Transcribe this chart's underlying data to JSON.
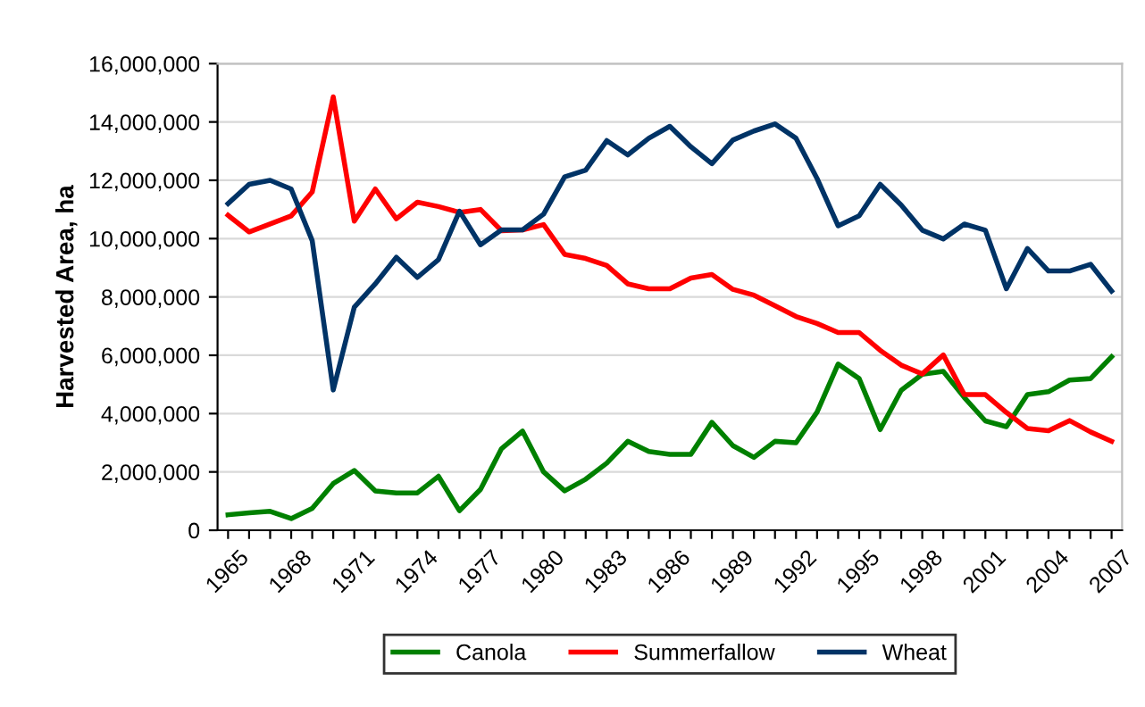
{
  "chart_data": {
    "type": "line",
    "ylabel": "Harvested Area, ha",
    "categories": [
      "1965",
      null,
      null,
      "1968",
      null,
      null,
      "1971",
      null,
      null,
      "1974",
      null,
      null,
      "1977",
      null,
      null,
      "1980",
      null,
      null,
      "1983",
      null,
      null,
      "1986",
      null,
      null,
      "1989",
      null,
      null,
      "1992",
      null,
      null,
      "1995",
      null,
      null,
      "1998",
      null,
      null,
      "2001",
      null,
      null,
      "2004",
      null,
      null,
      "2007"
    ],
    "series": [
      {
        "name": "Canola",
        "color": "#008000",
        "values": [
          530000,
          600000,
          650000,
          400000,
          750000,
          1600000,
          2050000,
          1350000,
          1280000,
          1280000,
          1850000,
          670000,
          1400000,
          2800000,
          3400000,
          2000000,
          1350000,
          1750000,
          2300000,
          3050000,
          2700000,
          2600000,
          2600000,
          3700000,
          2900000,
          2500000,
          3050000,
          3000000,
          4050000,
          5700000,
          5200000,
          3450000,
          4800000,
          5350000,
          5450000,
          4550000,
          3750000,
          3550000,
          4650000,
          4750000,
          5150000,
          5200000,
          5950000
        ]
      },
      {
        "name": "Summerfallow",
        "color": "#ff0000",
        "values": [
          10800000,
          10230000,
          10500000,
          10780000,
          11600000,
          14860000,
          10600000,
          11700000,
          10680000,
          11250000,
          11100000,
          10900000,
          11000000,
          10270000,
          10300000,
          10480000,
          9460000,
          9320000,
          9080000,
          8450000,
          8280000,
          8280000,
          8650000,
          8770000,
          8260000,
          8060000,
          7700000,
          7330000,
          7090000,
          6780000,
          6780000,
          6170000,
          5660000,
          5360000,
          6010000,
          4650000,
          4650000,
          4040000,
          3490000,
          3410000,
          3760000,
          3370000,
          3050000
        ]
      },
      {
        "name": "Wheat",
        "color": "#003366",
        "values": [
          11200000,
          11860000,
          12000000,
          11700000,
          9930000,
          4810000,
          7650000,
          8450000,
          9360000,
          8670000,
          9280000,
          10940000,
          9790000,
          10300000,
          10300000,
          10840000,
          12120000,
          12350000,
          13360000,
          12870000,
          13440000,
          13850000,
          13150000,
          12570000,
          13380000,
          13690000,
          13930000,
          13440000,
          12060000,
          10440000,
          10780000,
          11860000,
          11150000,
          10290000,
          9990000,
          10500000,
          10290000,
          8280000,
          9660000,
          8890000,
          8890000,
          9120000,
          8200000
        ]
      }
    ],
    "ylim": [
      0,
      16000000
    ],
    "yticks": [
      {
        "value": 0,
        "label": "0"
      },
      {
        "value": 2000000,
        "label": "2,000,000"
      },
      {
        "value": 4000000,
        "label": "4,000,000"
      },
      {
        "value": 6000000,
        "label": "6,000,000"
      },
      {
        "value": 8000000,
        "label": "8,000,000"
      },
      {
        "value": 10000000,
        "label": "10,000,000"
      },
      {
        "value": 12000000,
        "label": "12,000,000"
      },
      {
        "value": 14000000,
        "label": "14,000,000"
      },
      {
        "value": 16000000,
        "label": "16,000,000"
      }
    ],
    "grid": "y",
    "legend": "bottom",
    "marker": "none",
    "line_style": "solid"
  }
}
